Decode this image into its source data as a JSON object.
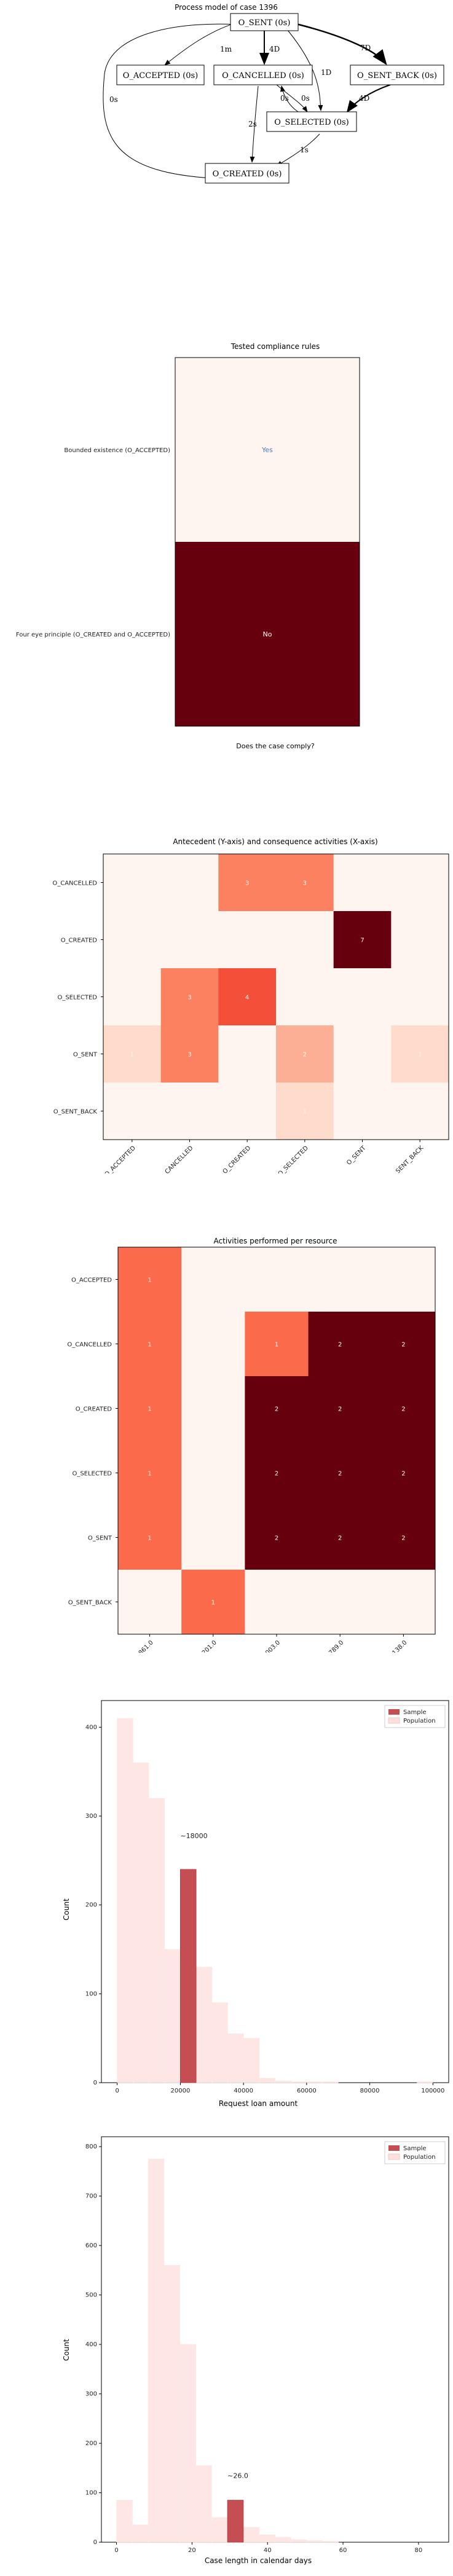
{
  "process_model": {
    "title": "Process model of case 1396",
    "nodes": [
      "O_SENT (0s)",
      "O_ACCEPTED (0s)",
      "O_CANCELLED (0s)",
      "O_SENT_BACK (0s)",
      "O_SELECTED (0s)",
      "O_CREATED (0s)"
    ],
    "edges": [
      {
        "from": "O_SENT (0s)",
        "to": "O_ACCEPTED (0s)",
        "label": "1m"
      },
      {
        "from": "O_SENT (0s)",
        "to": "O_CANCELLED (0s)",
        "label": "4D"
      },
      {
        "from": "O_SENT (0s)",
        "to": "O_SENT_BACK (0s)",
        "label": "7D"
      },
      {
        "from": "O_SENT (0s)",
        "to": "O_SELECTED (0s)",
        "label": "1D"
      },
      {
        "from": "O_SENT_BACK (0s)",
        "to": "O_SELECTED (0s)",
        "label": "4D"
      },
      {
        "from": "O_CANCELLED (0s)",
        "to": "O_SELECTED (0s)",
        "label": "0s"
      },
      {
        "from": "O_SELECTED (0s)",
        "to": "O_CANCELLED (0s)",
        "label": "0s"
      },
      {
        "from": "O_CANCELLED (0s)",
        "to": "O_CREATED (0s)",
        "label": "2s"
      },
      {
        "from": "O_SELECTED (0s)",
        "to": "O_CREATED (0s)",
        "label": "1s"
      },
      {
        "from": "O_CREATED (0s)",
        "to": "O_SENT (0s)",
        "label": "0s"
      }
    ]
  },
  "chart_data": [
    {
      "type": "table",
      "title": "Tested compliance rules",
      "xlabel": "Does the case comply?",
      "rows": [
        "Bounded existence (O_ACCEPTED)",
        "Four eye principle (O_CREATED and O_ACCEPTED)"
      ],
      "values": [
        "Yes",
        "No"
      ],
      "colors": {
        "Yes": "#fff5f0",
        "No": "#67000d"
      }
    },
    {
      "type": "heatmap",
      "title": "Antecedent (Y-axis) and consequence activities (X-axis)",
      "rows": [
        "O_CANCELLED",
        "O_CREATED",
        "O_SELECTED",
        "O_SENT",
        "O_SENT_BACK"
      ],
      "cols": [
        "O_ACCEPTED",
        "O_CANCELLED",
        "O_CREATED",
        "O_SELECTED",
        "O_SENT",
        "O_SENT_BACK"
      ],
      "values": [
        [
          0,
          0,
          3,
          3,
          0,
          0
        ],
        [
          0,
          0,
          0,
          0,
          7,
          0
        ],
        [
          0,
          3,
          4,
          0,
          0,
          0
        ],
        [
          1,
          3,
          0,
          2,
          0,
          1
        ],
        [
          0,
          0,
          0,
          1,
          0,
          0
        ]
      ],
      "vmax": 7
    },
    {
      "type": "heatmap",
      "title": "Activities performed per resource",
      "rows": [
        "O_ACCEPTED",
        "O_CANCELLED",
        "O_CREATED",
        "O_SELECTED",
        "O_SENT",
        "O_SENT_BACK"
      ],
      "cols": [
        "10861.0",
        "11201.0",
        "11003.0",
        "10789.0",
        "10138.0"
      ],
      "values": [
        [
          1,
          0,
          0,
          0,
          0
        ],
        [
          1,
          0,
          1,
          2,
          2
        ],
        [
          1,
          0,
          2,
          2,
          2
        ],
        [
          1,
          0,
          2,
          2,
          2
        ],
        [
          1,
          0,
          2,
          2,
          2
        ],
        [
          0,
          1,
          0,
          0,
          0
        ]
      ],
      "vmax": 2
    },
    {
      "type": "bar",
      "xlabel": "Request loan amount",
      "ylabel": "Count",
      "xlim": [
        -5000,
        105000
      ],
      "ylim": [
        0,
        430
      ],
      "xticks": [
        0,
        20000,
        40000,
        60000,
        80000,
        100000
      ],
      "yticks": [
        0,
        100,
        200,
        300,
        400,
        500
      ],
      "bin_width": 5000,
      "series": [
        {
          "name": "Population",
          "bins": [
            0,
            5000,
            10000,
            15000,
            20000,
            25000,
            30000,
            35000,
            40000,
            45000,
            50000,
            55000,
            60000,
            65000,
            70000,
            75000,
            80000,
            85000,
            90000,
            95000
          ],
          "values": [
            410,
            360,
            320,
            150,
            140,
            130,
            90,
            55,
            50,
            5,
            2,
            1,
            1,
            1,
            0,
            0,
            0,
            0,
            0,
            1
          ]
        },
        {
          "name": "Sample",
          "bins": [
            20000
          ],
          "values": [
            240
          ]
        }
      ],
      "annotation": {
        "text": "∼18000",
        "x": 20000,
        "y": 275
      },
      "legend": "top-right",
      "colors": {
        "Sample": "#c44e52",
        "Population": "#fde0dd"
      }
    },
    {
      "type": "bar",
      "xlabel": "Case length in calendar days",
      "ylabel": "Count",
      "xlim": [
        -4,
        88
      ],
      "ylim": [
        0,
        820
      ],
      "xticks": [
        0,
        20,
        40,
        60,
        80
      ],
      "yticks": [
        0,
        100,
        200,
        300,
        400,
        500,
        600,
        700,
        800
      ],
      "bin_width": 4.2,
      "series": [
        {
          "name": "Population",
          "bins": [
            0,
            4.2,
            8.4,
            12.6,
            16.8,
            21,
            25.2,
            29.4,
            33.6,
            37.8,
            42,
            46.2,
            50.4,
            54.6
          ],
          "values": [
            85,
            35,
            775,
            560,
            400,
            155,
            50,
            85,
            30,
            15,
            10,
            5,
            3,
            2
          ]
        },
        {
          "name": "Sample",
          "bins": [
            29.4
          ],
          "values": [
            85
          ]
        }
      ],
      "annotation": {
        "text": "∼26.0",
        "x": 29.4,
        "y": 130
      },
      "legend": "top-right",
      "colors": {
        "Sample": "#c44e52",
        "Population": "#fde0dd"
      }
    }
  ]
}
